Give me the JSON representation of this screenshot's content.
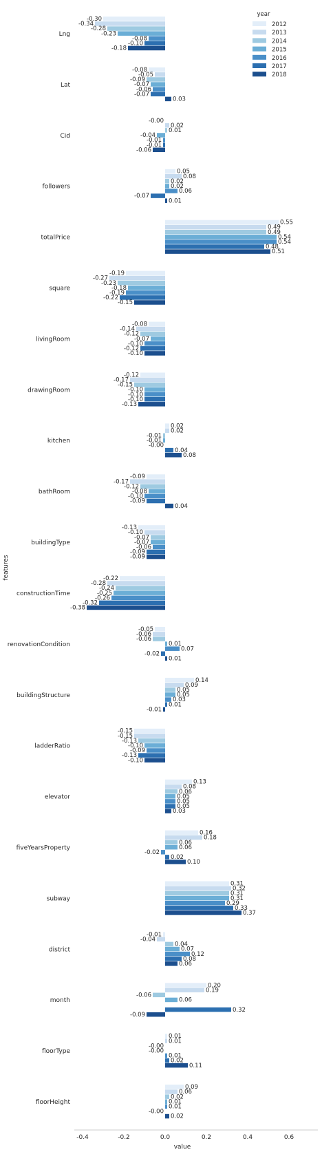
{
  "chart_data": {
    "type": "bar",
    "orientation": "horizontal",
    "xlabel": "value",
    "ylabel": "features",
    "xlim": [
      -0.42,
      0.6
    ],
    "xticks": [
      -0.4,
      -0.2,
      0.0,
      0.2,
      0.4,
      0.6
    ],
    "xtick_labels": [
      "-0.4",
      "-0.2",
      "0.0",
      "0.2",
      "0.4",
      "0.6"
    ],
    "grid": false,
    "legend": {
      "title": "year",
      "placement": "top-right"
    },
    "categories": [
      "Lng",
      "Lat",
      "Cid",
      "followers",
      "totalPrice",
      "square",
      "livingRoom",
      "drawingRoom",
      "kitchen",
      "bathRoom",
      "buildingType",
      "constructionTime",
      "renovationCondition",
      "buildingStructure",
      "ladderRatio",
      "elevator",
      "fiveYearsProperty",
      "subway",
      "district",
      "month",
      "floorType",
      "floorHeight"
    ],
    "series": [
      {
        "name": "2012",
        "color": "#e3eef9",
        "values": [
          -0.3,
          -0.08,
          -0.0,
          0.05,
          0.55,
          -0.19,
          -0.08,
          -0.12,
          0.02,
          -0.09,
          -0.13,
          -0.22,
          -0.05,
          0.14,
          -0.15,
          0.13,
          0.16,
          0.31,
          -0.01,
          0.2,
          0.01,
          0.09
        ],
        "labels": [
          "-0.30",
          "-0.08",
          "-0.00",
          "0.05",
          "0.55",
          "-0.19",
          "-0.08",
          "-0.12",
          "0.02",
          "-0.09",
          "-0.13",
          "-0.22",
          "-0.05",
          "0.14",
          "-0.15",
          "0.13",
          "0.16",
          "0.31",
          "-0.01",
          "0.20",
          "0.01",
          "0.09"
        ]
      },
      {
        "name": "2013",
        "color": "#c7dbef",
        "values": [
          -0.34,
          -0.05,
          0.02,
          0.08,
          0.49,
          -0.27,
          -0.14,
          -0.17,
          0.02,
          -0.17,
          -0.1,
          -0.28,
          -0.06,
          0.09,
          -0.15,
          0.08,
          0.18,
          0.32,
          -0.04,
          0.19,
          0.01,
          0.06
        ],
        "labels": [
          "-0.34",
          "-0.05",
          "0.02",
          "0.08",
          "0.49",
          "-0.27",
          "-0.14",
          "-0.17",
          "0.02",
          "-0.17",
          "-0.10",
          "-0.28",
          "-0.06",
          "0.09",
          "-0.15",
          "0.08",
          "0.18",
          "0.32",
          "-0.04",
          "0.19",
          "0.01",
          "0.06"
        ]
      },
      {
        "name": "2014",
        "color": "#9ecae1",
        "values": [
          -0.28,
          -0.09,
          0.01,
          0.02,
          0.49,
          -0.23,
          -0.12,
          -0.15,
          -0.01,
          -0.12,
          -0.07,
          -0.24,
          -0.06,
          0.05,
          -0.13,
          0.06,
          0.06,
          0.31,
          0.04,
          -0.06,
          -0.0,
          0.02
        ],
        "labels": [
          "-0.28",
          "-0.09",
          "0.01",
          "0.02",
          "0.49",
          "-0.23",
          "-0.12",
          "-0.15",
          "-0.01",
          "-0.12",
          "-0.07",
          "-0.24",
          "-0.06",
          "0.05",
          "-0.13",
          "0.06",
          "0.06",
          "0.31",
          "0.04",
          "-0.06",
          "-0.00",
          "0.02"
        ]
      },
      {
        "name": "2015",
        "color": "#6baed6",
        "values": [
          -0.23,
          -0.07,
          -0.04,
          0.02,
          0.54,
          -0.18,
          -0.07,
          -0.1,
          -0.01,
          -0.08,
          -0.07,
          -0.25,
          0.01,
          0.05,
          -0.1,
          0.05,
          0.06,
          0.31,
          0.07,
          0.06,
          -0.0,
          0.01
        ],
        "labels": [
          "-0.23",
          "-0.07",
          "-0.04",
          "0.02",
          "0.54",
          "-0.18",
          "-0.07",
          "-0.10",
          "-0.01",
          "-0.08",
          "-0.07",
          "-0.25",
          "0.01",
          "0.05",
          "-0.10",
          "0.05",
          "0.06",
          "0.31",
          "0.07",
          "0.06",
          "-0.00",
          "0.01"
        ]
      },
      {
        "name": "2016",
        "color": "#4a8fc8",
        "values": [
          -0.08,
          -0.06,
          -0.01,
          0.06,
          0.54,
          -0.19,
          -0.1,
          -0.1,
          -0.0,
          -0.1,
          -0.06,
          -0.26,
          0.07,
          0.03,
          -0.09,
          0.05,
          -0.02,
          0.29,
          0.12,
          0.0,
          0.01,
          0.01
        ],
        "labels": [
          "-0.08",
          "-0.06",
          "-0.01",
          "0.06",
          "0.54",
          "-0.19",
          "-0.10",
          "-0.10",
          "-0.00",
          "-0.10",
          "-0.06",
          "-0.26",
          "0.07",
          "0.03",
          "-0.09",
          "0.05",
          "-0.02",
          "0.29",
          "0.12",
          "",
          "0.01",
          "0.01"
        ]
      },
      {
        "name": "2017",
        "color": "#2c6fb0",
        "values": [
          -0.1,
          -0.07,
          -0.01,
          -0.07,
          0.48,
          -0.22,
          -0.12,
          -0.1,
          0.04,
          -0.09,
          -0.09,
          -0.32,
          -0.02,
          0.01,
          -0.13,
          0.05,
          0.02,
          0.33,
          0.08,
          0.32,
          0.02,
          -0.0
        ],
        "labels": [
          "-0.10",
          "-0.07",
          "-0.01",
          "-0.07",
          "0.48",
          "-0.22",
          "-0.12",
          "-0.10",
          "0.04",
          "-0.09",
          "-0.09",
          "-0.32",
          "-0.02",
          "0.01",
          "-0.13",
          "0.05",
          "0.02",
          "0.33",
          "0.08",
          "0.32",
          "0.02",
          "-0.00"
        ]
      },
      {
        "name": "2018",
        "color": "#1c4f8e",
        "values": [
          -0.18,
          0.03,
          -0.06,
          0.01,
          0.51,
          -0.15,
          -0.1,
          -0.13,
          0.08,
          0.04,
          -0.09,
          -0.38,
          0.01,
          -0.01,
          -0.1,
          0.03,
          0.1,
          0.37,
          0.06,
          -0.09,
          0.11,
          0.02
        ],
        "labels": [
          "-0.18",
          "0.03",
          "-0.06",
          "0.01",
          "0.51",
          "-0.15",
          "-0.10",
          "-0.13",
          "0.08",
          "0.04",
          "-0.09",
          "-0.38",
          "0.01",
          "-0.01",
          "-0.10",
          "0.03",
          "0.10",
          "0.37",
          "0.06",
          "-0.09",
          "0.11",
          "0.02"
        ]
      }
    ]
  }
}
